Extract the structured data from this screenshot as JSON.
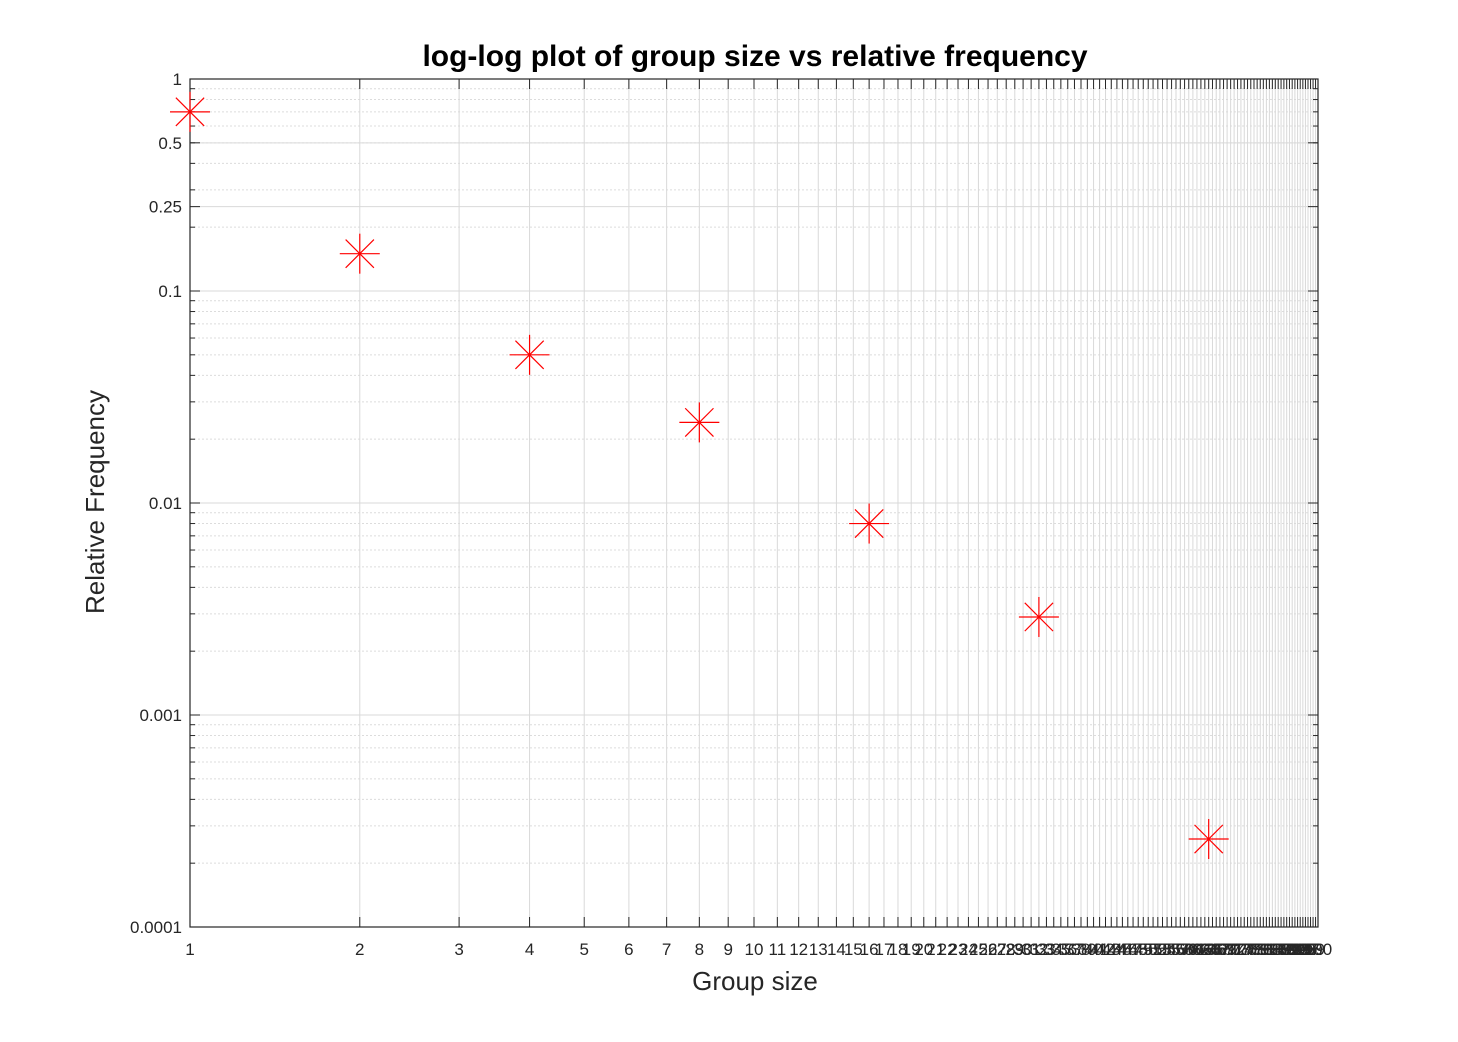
{
  "chart_data": {
    "type": "scatter",
    "title": "log-log plot of group size vs relative frequency",
    "xlabel": "Group size",
    "ylabel": "Relative Frequency",
    "xscale": "log",
    "yscale": "log",
    "xlim": [
      1,
      100
    ],
    "ylim": [
      0.0001,
      1
    ],
    "grid": true,
    "x_ticks": [
      1,
      2,
      3,
      4,
      5,
      6,
      7,
      8,
      9,
      10,
      11,
      12,
      13,
      14,
      15,
      16,
      17,
      18,
      19,
      20,
      21,
      22,
      23,
      24,
      25,
      26,
      27,
      28,
      29,
      30,
      31,
      32,
      33,
      34,
      35,
      36,
      37,
      38,
      39,
      40,
      41,
      42,
      43,
      44,
      45,
      46,
      47,
      48,
      49,
      50,
      51,
      52,
      53,
      54,
      55,
      56,
      57,
      58,
      59,
      60,
      61,
      62,
      63,
      64,
      65,
      66,
      67,
      68,
      69,
      70,
      71,
      72,
      73,
      74,
      75,
      76,
      77,
      78,
      79,
      80,
      81,
      82,
      83,
      84,
      85,
      86,
      87,
      88,
      89,
      90,
      91,
      92,
      93,
      94,
      95,
      96,
      97,
      98,
      99,
      100
    ],
    "y_ticks": [
      0.0001,
      0.001,
      0.01,
      0.1,
      0.25,
      0.5,
      1
    ],
    "y_tick_labels": [
      "0.0001",
      "0.001",
      "0.01",
      "0.1",
      "0.25",
      "0.5",
      "1"
    ],
    "marker": "asterisk",
    "marker_color": "#ff0000",
    "series": [
      {
        "x": [
          1,
          2,
          4,
          8,
          16,
          32,
          64
        ],
        "y": [
          0.7,
          0.15,
          0.05,
          0.024,
          0.008,
          0.0029,
          0.00026
        ]
      }
    ]
  }
}
